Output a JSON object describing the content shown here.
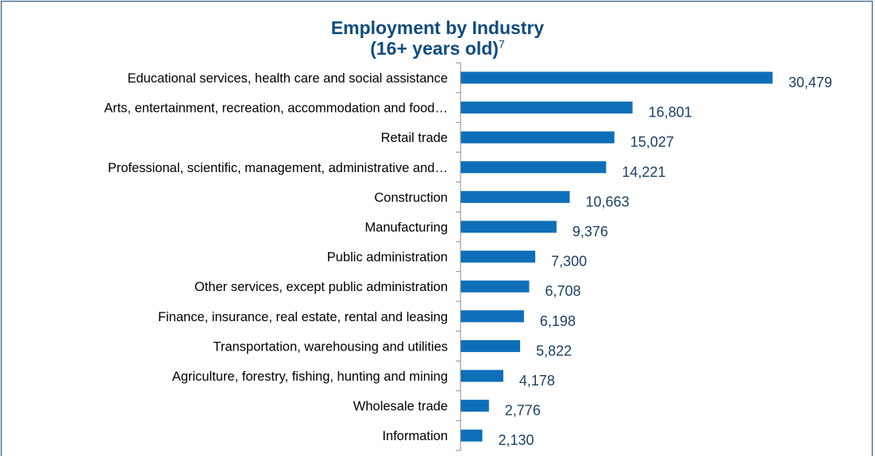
{
  "chart_data": {
    "type": "bar",
    "orientation": "horizontal",
    "title": "Employment by Industry",
    "subtitle": "(16+ years old)",
    "title_superscript": "7",
    "categories": [
      "Educational services, health care and social assistance",
      "Arts, entertainment, recreation, accommodation and food…",
      "Retail trade",
      "Professional, scientific, management, administrative and…",
      "Construction",
      "Manufacturing",
      "Public administration",
      "Other services, except public administration",
      "Finance, insurance, real estate, rental and leasing",
      "Transportation, warehousing and utilities",
      "Agriculture, forestry, fishing, hunting and mining",
      "Wholesale trade",
      "Information"
    ],
    "values": [
      30479,
      16801,
      15027,
      14221,
      10663,
      9376,
      7300,
      6708,
      6198,
      5822,
      4178,
      2776,
      2130
    ],
    "value_labels": [
      "30,479",
      "16,801",
      "15,027",
      "14,221",
      "10,663",
      "9,376",
      "7,300",
      "6,708",
      "6,198",
      "5,822",
      "4,178",
      "2,776",
      "2,130"
    ],
    "bar_color": "#0e6fb8",
    "title_color": "#0e4c7e",
    "value_label_color": "#1f3f66",
    "grid": false,
    "xlim": [
      0,
      30479
    ]
  }
}
